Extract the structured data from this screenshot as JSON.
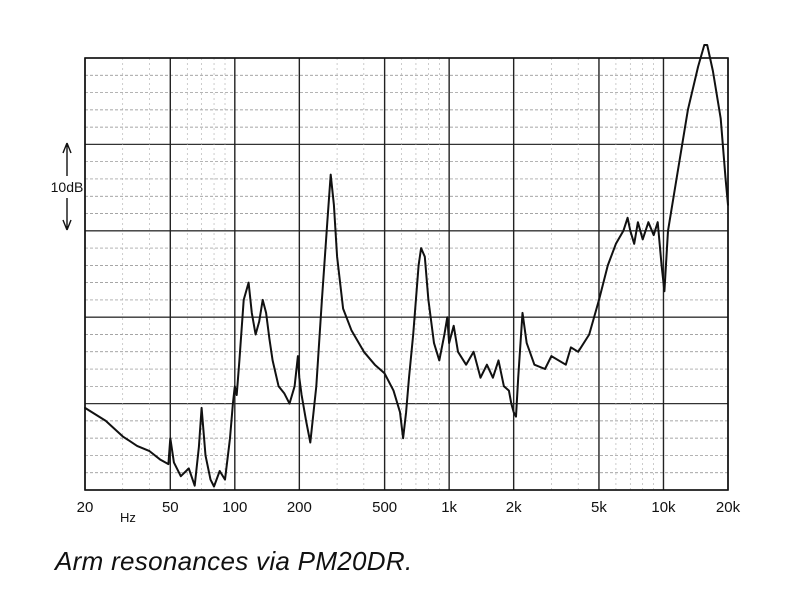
{
  "caption": "Arm resonances via PM20DR.",
  "chart_data": {
    "type": "line",
    "title": "",
    "xlabel": "Hz",
    "ylabel": "",
    "xscale": "log",
    "xlim": [
      20,
      20000
    ],
    "ylim": [
      0,
      50
    ],
    "grid": true,
    "scale_marker": {
      "label": "10dB",
      "value_db": 10
    },
    "x_ticks": [
      {
        "label": "20",
        "value": 20
      },
      {
        "label": "50",
        "value": 50
      },
      {
        "label": "100",
        "value": 100
      },
      {
        "label": "200",
        "value": 200
      },
      {
        "label": "500",
        "value": 500
      },
      {
        "label": "1k",
        "value": 1000
      },
      {
        "label": "2k",
        "value": 2000
      },
      {
        "label": "5k",
        "value": 5000
      },
      {
        "label": "10k",
        "value": 10000
      },
      {
        "label": "20k",
        "value": 20000
      }
    ],
    "series": [
      {
        "x": [
          20,
          25,
          30,
          35,
          40,
          45,
          49,
          50,
          52,
          56,
          61,
          65,
          68,
          70,
          73,
          77,
          80,
          85,
          90,
          95,
          98,
          100,
          102,
          105,
          110,
          116,
          120,
          125,
          130,
          135,
          140,
          145,
          150,
          160,
          170,
          180,
          190,
          197,
          200,
          205,
          215,
          225,
          240,
          255,
          270,
          280,
          290,
          300,
          320,
          350,
          400,
          450,
          500,
          550,
          590,
          610,
          630,
          650,
          680,
          720,
          740,
          770,
          800,
          850,
          900,
          950,
          980,
          1000,
          1050,
          1100,
          1200,
          1300,
          1400,
          1500,
          1600,
          1700,
          1800,
          1900,
          1950,
          2000,
          2050,
          2100,
          2200,
          2300,
          2500,
          2800,
          3000,
          3500,
          3700,
          4000,
          4500,
          5000,
          5500,
          6000,
          6500,
          6800,
          7000,
          7300,
          7600,
          8000,
          8500,
          9000,
          9400,
          9800,
          10100,
          10500,
          11500,
          13000,
          14500,
          15500,
          16000,
          17000,
          18500,
          19500,
          20000
        ],
        "y": [
          9.5,
          8.0,
          6.2,
          5.1,
          4.5,
          3.5,
          3.0,
          6.0,
          3.2,
          1.6,
          2.5,
          0.5,
          5.0,
          9.5,
          4.0,
          1.2,
          0.4,
          2.2,
          1.2,
          6.0,
          10.0,
          12.0,
          11.0,
          15.0,
          22.0,
          24.0,
          20.5,
          18.0,
          19.5,
          22.0,
          20.5,
          17.5,
          15.0,
          12.0,
          11.2,
          10.0,
          12.0,
          15.5,
          13.0,
          11.0,
          8.0,
          5.5,
          12.0,
          22.0,
          31.0,
          36.5,
          33.0,
          27.0,
          21.0,
          18.5,
          16.0,
          14.5,
          13.5,
          11.5,
          9.0,
          6.0,
          9.0,
          13.0,
          18.0,
          26.0,
          28.0,
          27.0,
          22.0,
          17.0,
          15.0,
          18.0,
          20.0,
          17.0,
          19.0,
          16.0,
          14.5,
          16.0,
          13.0,
          14.5,
          13.0,
          15.0,
          12.0,
          11.5,
          10.0,
          9.0,
          8.5,
          13.0,
          20.5,
          17.0,
          14.5,
          14.0,
          15.5,
          14.5,
          16.5,
          16.0,
          18.0,
          22.0,
          26.0,
          28.5,
          30.0,
          31.5,
          30.0,
          28.5,
          31.0,
          29.0,
          31.0,
          29.5,
          31.0,
          26.0,
          23.0,
          30.0,
          36.0,
          44.0,
          49.0,
          51.5,
          51.5,
          48.5,
          43.0,
          36.0,
          33.0
        ]
      }
    ]
  }
}
